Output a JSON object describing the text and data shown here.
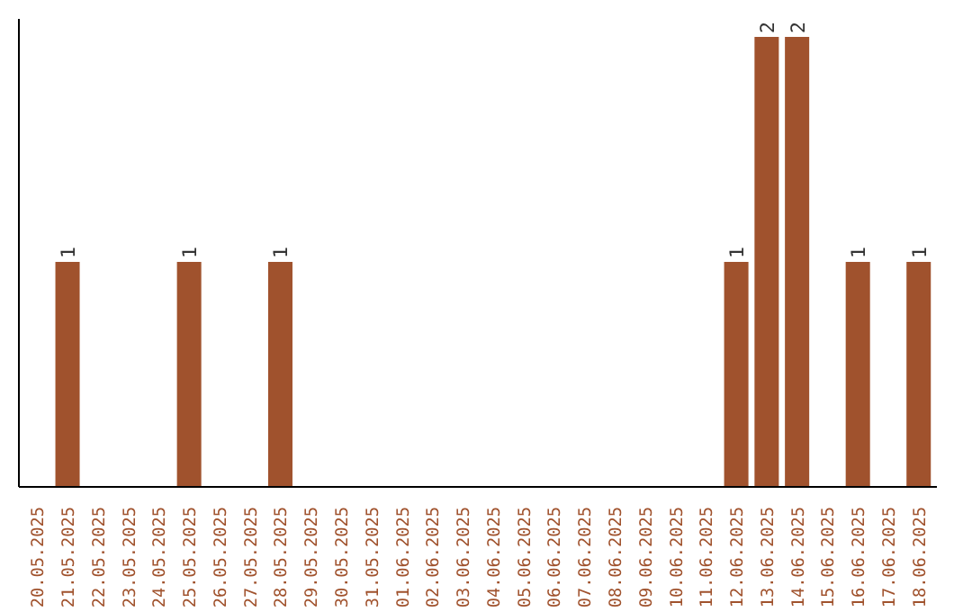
{
  "chart_data": {
    "type": "bar",
    "categories": [
      "20.05.2025",
      "21.05.2025",
      "22.05.2025",
      "23.05.2025",
      "24.05.2025",
      "25.05.2025",
      "26.05.2025",
      "27.05.2025",
      "28.05.2025",
      "29.05.2025",
      "30.05.2025",
      "31.05.2025",
      "01.06.2025",
      "02.06.2025",
      "03.06.2025",
      "04.06.2025",
      "05.06.2025",
      "06.06.2025",
      "07.06.2025",
      "08.06.2025",
      "09.06.2025",
      "10.06.2025",
      "11.06.2025",
      "12.06.2025",
      "13.06.2025",
      "14.06.2025",
      "15.06.2025",
      "16.06.2025",
      "17.06.2025",
      "18.06.2025"
    ],
    "values": [
      0,
      1,
      0,
      0,
      0,
      1,
      0,
      0,
      1,
      0,
      0,
      0,
      0,
      0,
      0,
      0,
      0,
      0,
      0,
      0,
      0,
      0,
      0,
      1,
      2,
      2,
      0,
      1,
      0,
      1
    ],
    "value_labels": [
      null,
      "1",
      null,
      null,
      null,
      "1",
      null,
      null,
      "1",
      null,
      null,
      null,
      null,
      null,
      null,
      null,
      null,
      null,
      null,
      null,
      null,
      null,
      null,
      "1",
      "2",
      "2",
      null,
      "1",
      null,
      "1"
    ],
    "color": "#a0522d",
    "ylim": [
      0,
      2.08
    ],
    "grid": false,
    "tick_labels": "x"
  }
}
